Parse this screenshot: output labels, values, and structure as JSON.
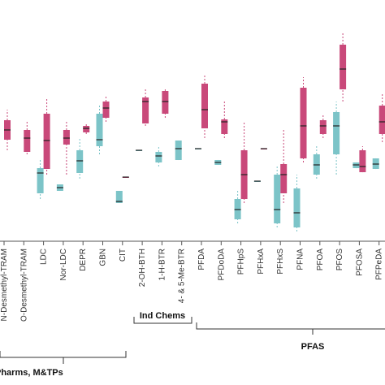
{
  "chart_data": {
    "type": "box",
    "categories": [
      "N-Desmethyl-TRAM",
      "O-Desmethyl-TRAM",
      "LDC",
      "Nor-LDC",
      "DEPR",
      "GBN",
      "CIT",
      "2-OH-BTH",
      "1-H-BTR",
      "4- & 5-Me-BTR",
      "PFDA",
      "PFDoDA",
      "PFHpS",
      "PFHxA",
      "PFHxS",
      "PFNA",
      "PFOA",
      "PFOS",
      "PFOSA",
      "PFPeDA"
    ],
    "ylim": [
      0,
      260
    ],
    "series": [
      {
        "color": "#c9497a",
        "values": [
          [
            105,
            118,
            130,
            142,
            155
          ],
          [
            100,
            103,
            120,
            130,
            142
          ],
          [
            75,
            82,
            117,
            150,
            170
          ],
          [
            75,
            112,
            120,
            130,
            140
          ],
          [
            125,
            127,
            132,
            135,
            137
          ],
          [
            140,
            145,
            157,
            165,
            172
          ],
          [
            72,
            72,
            72,
            72,
            72
          ],
          [
            135,
            138,
            165,
            170,
            180
          ],
          [
            145,
            150,
            165,
            178,
            182
          ],
          null,
          [
            120,
            132,
            155,
            187,
            198
          ],
          [
            120,
            125,
            140,
            143,
            165
          ],
          [
            40,
            45,
            75,
            105,
            140
          ],
          [
            107,
            107,
            107,
            107,
            107
          ],
          [
            40,
            52,
            75,
            88,
            130
          ],
          [
            90,
            95,
            135,
            182,
            195
          ],
          [
            120,
            125,
            135,
            142,
            150
          ],
          [
            165,
            180,
            205,
            235,
            250
          ],
          [
            78,
            78,
            85,
            105,
            110
          ],
          [
            115,
            125,
            140,
            160,
            175
          ]
        ]
      },
      {
        "color": "#7cc4c8",
        "values": [
          null,
          null,
          [
            45,
            52,
            77,
            83,
            95
          ],
          [
            55,
            55,
            59,
            63,
            63
          ],
          [
            70,
            77,
            92,
            105,
            120
          ],
          [
            100,
            110,
            118,
            150,
            160
          ],
          [
            40,
            40,
            42,
            55,
            55
          ],
          [
            105,
            105,
            105,
            105,
            105
          ],
          [
            85,
            90,
            98,
            103,
            110
          ],
          [
            93,
            93,
            107,
            117,
            117
          ],
          [
            107,
            107,
            107,
            107,
            107
          ],
          [
            87,
            87,
            90,
            93,
            93
          ],
          [
            15,
            20,
            32,
            45,
            55
          ],
          [
            67,
            67,
            67,
            67,
            67
          ],
          [
            10,
            15,
            32,
            75,
            85
          ],
          [
            5,
            10,
            28,
            58,
            75
          ],
          [
            70,
            75,
            87,
            100,
            112
          ],
          [
            75,
            100,
            135,
            152,
            165
          ],
          [
            83,
            83,
            87,
            90,
            90
          ],
          [
            82,
            82,
            88,
            95,
            95
          ]
        ]
      }
    ],
    "groups": [
      "Pharms, M&TPs",
      "Ind Chems",
      "PFAS"
    ]
  }
}
